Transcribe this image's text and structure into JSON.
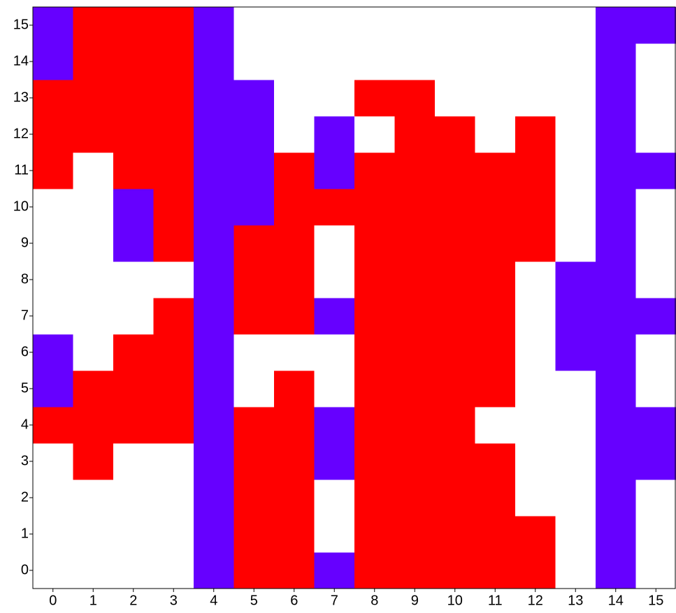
{
  "chart_data": {
    "type": "heatmap",
    "xlim": [
      -0.5,
      15.5
    ],
    "ylim": [
      -0.5,
      15.5
    ],
    "xticks": [
      0,
      1,
      2,
      3,
      4,
      5,
      6,
      7,
      8,
      9,
      10,
      11,
      12,
      13,
      14,
      15
    ],
    "yticks": [
      0,
      1,
      2,
      3,
      4,
      5,
      6,
      7,
      8,
      9,
      10,
      11,
      12,
      13,
      14,
      15
    ],
    "colors": [
      "#ffffff",
      "#6600ff",
      "#ff0000"
    ],
    "z": [
      [
        0,
        0,
        0,
        0,
        1,
        2,
        2,
        1,
        2,
        2,
        2,
        2,
        2,
        0,
        1,
        0
      ],
      [
        0,
        0,
        0,
        0,
        1,
        2,
        2,
        0,
        2,
        2,
        2,
        2,
        2,
        0,
        1,
        0
      ],
      [
        0,
        0,
        0,
        0,
        1,
        2,
        2,
        0,
        2,
        2,
        2,
        2,
        0,
        0,
        1,
        0
      ],
      [
        0,
        2,
        0,
        0,
        1,
        2,
        2,
        1,
        2,
        2,
        2,
        2,
        0,
        0,
        1,
        1
      ],
      [
        2,
        2,
        2,
        2,
        1,
        2,
        2,
        1,
        2,
        2,
        2,
        0,
        0,
        0,
        1,
        1
      ],
      [
        1,
        2,
        2,
        2,
        1,
        0,
        2,
        0,
        2,
        2,
        2,
        2,
        0,
        0,
        1,
        0
      ],
      [
        1,
        0,
        2,
        2,
        1,
        0,
        0,
        0,
        2,
        2,
        2,
        2,
        0,
        1,
        1,
        0
      ],
      [
        0,
        0,
        0,
        2,
        1,
        2,
        2,
        1,
        2,
        2,
        2,
        2,
        0,
        1,
        1,
        1
      ],
      [
        0,
        0,
        0,
        0,
        1,
        2,
        2,
        0,
        2,
        2,
        2,
        2,
        0,
        1,
        1,
        0
      ],
      [
        0,
        0,
        1,
        2,
        1,
        2,
        2,
        0,
        2,
        2,
        2,
        2,
        2,
        0,
        1,
        0
      ],
      [
        0,
        0,
        1,
        2,
        1,
        1,
        2,
        2,
        2,
        2,
        2,
        2,
        2,
        0,
        1,
        0
      ],
      [
        2,
        0,
        2,
        2,
        1,
        1,
        2,
        1,
        2,
        2,
        2,
        2,
        2,
        0,
        1,
        1
      ],
      [
        2,
        2,
        2,
        2,
        1,
        1,
        0,
        1,
        0,
        2,
        2,
        0,
        2,
        0,
        1,
        0
      ],
      [
        2,
        2,
        2,
        2,
        1,
        1,
        0,
        0,
        2,
        2,
        0,
        0,
        0,
        0,
        1,
        0
      ],
      [
        1,
        2,
        2,
        2,
        1,
        0,
        0,
        0,
        0,
        0,
        0,
        0,
        0,
        0,
        1,
        0
      ],
      [
        1,
        2,
        2,
        2,
        1,
        0,
        0,
        0,
        0,
        0,
        0,
        0,
        0,
        0,
        1,
        1
      ]
    ]
  }
}
